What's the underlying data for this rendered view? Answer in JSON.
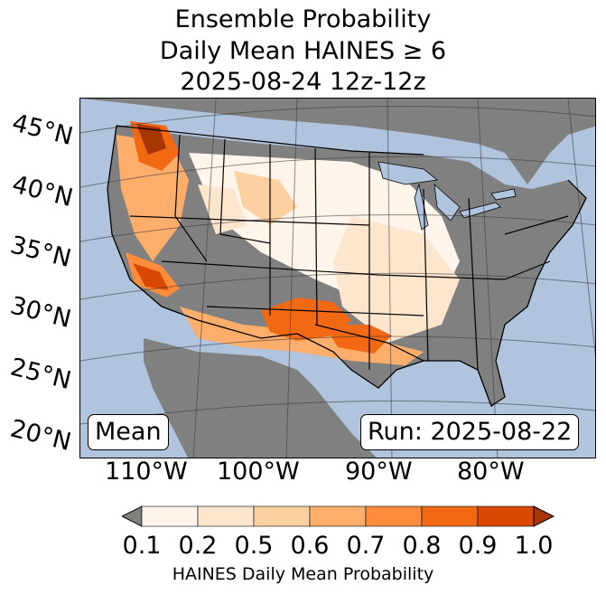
{
  "title": {
    "line1": "Ensemble Probability",
    "line2": "Daily Mean HAINES ≥ 6",
    "line3": "2025-08-24 12z-12z"
  },
  "map": {
    "ocean_color": "#b0c4de",
    "land_color": "#808080",
    "lat_labels": [
      "45°N",
      "40°N",
      "35°N",
      "30°N",
      "25°N",
      "20°N"
    ],
    "lon_labels": [
      "110°W",
      "100°W",
      "90°W",
      "80°W"
    ],
    "mean_label": "Mean",
    "run_label": "Run: 2025-08-22"
  },
  "colorbar": {
    "under_color": "#808080",
    "colors": [
      "#fff5eb",
      "#fee6ce",
      "#fdd0a2",
      "#fdae6b",
      "#fd8d3c",
      "#f16913",
      "#d94801",
      "#a63603"
    ],
    "tick_labels": [
      "0.1",
      "0.2",
      "0.5",
      "0.6",
      "0.7",
      "0.8",
      "0.9",
      "1.0"
    ],
    "label": "HAINES Daily Mean Probability"
  }
}
